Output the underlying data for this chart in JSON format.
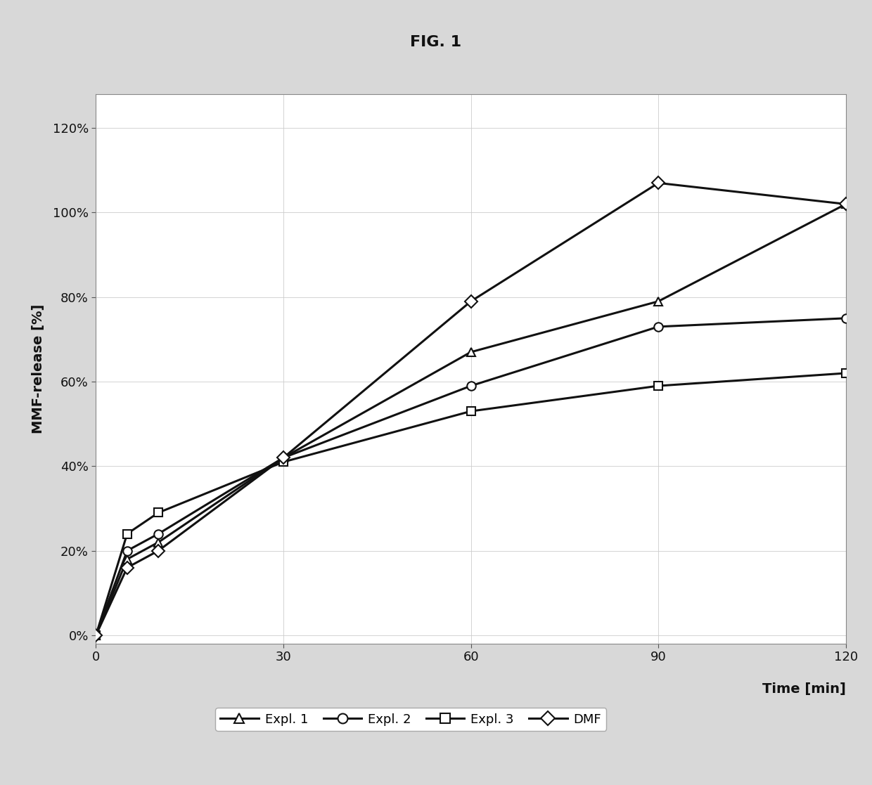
{
  "title": "FIG. 1",
  "xlabel": "Time [min]",
  "ylabel": "MMF-release [%]",
  "xlim": [
    0,
    120
  ],
  "ylim": [
    -0.02,
    1.28
  ],
  "xticks": [
    0,
    30,
    60,
    90,
    120
  ],
  "yticks": [
    0.0,
    0.2,
    0.4,
    0.6,
    0.8,
    1.0,
    1.2
  ],
  "ytick_labels": [
    "0%",
    "20%",
    "40%",
    "60%",
    "80%",
    "100%",
    "120%"
  ],
  "series": {
    "Expl. 1": {
      "x": [
        0,
        5,
        10,
        30,
        60,
        90,
        120
      ],
      "y": [
        0,
        0.18,
        0.22,
        0.42,
        0.67,
        0.79,
        1.02
      ],
      "marker": "^",
      "color": "#111111",
      "linewidth": 2.2,
      "markersize": 9
    },
    "Expl. 2": {
      "x": [
        0,
        5,
        10,
        30,
        60,
        90,
        120
      ],
      "y": [
        0,
        0.2,
        0.24,
        0.42,
        0.59,
        0.73,
        0.75
      ],
      "marker": "o",
      "color": "#111111",
      "linewidth": 2.2,
      "markersize": 9
    },
    "Expl. 3": {
      "x": [
        0,
        5,
        10,
        30,
        60,
        90,
        120
      ],
      "y": [
        0,
        0.24,
        0.29,
        0.41,
        0.53,
        0.59,
        0.62
      ],
      "marker": "s",
      "color": "#111111",
      "linewidth": 2.2,
      "markersize": 9
    },
    "DMF": {
      "x": [
        0,
        5,
        10,
        30,
        60,
        90,
        120
      ],
      "y": [
        0,
        0.16,
        0.2,
        0.42,
        0.79,
        1.07,
        1.02
      ],
      "marker": "D",
      "color": "#111111",
      "linewidth": 2.2,
      "markersize": 9
    }
  },
  "legend_order": [
    "Expl. 1",
    "Expl. 2",
    "Expl. 3",
    "DMF"
  ],
  "plot_bg": "#ffffff",
  "figure_bg": "#d8d8d8",
  "grid_color": "#cccccc",
  "border_color": "#888888"
}
